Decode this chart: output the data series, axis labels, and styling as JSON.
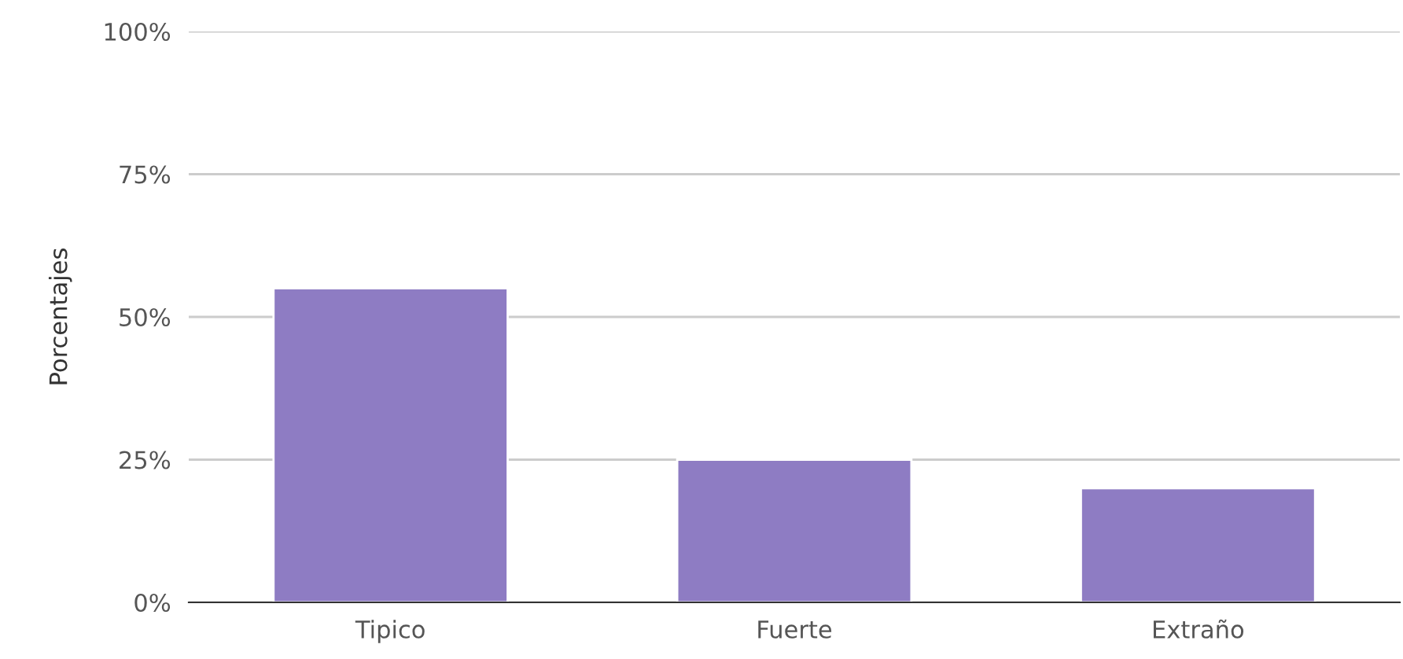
{
  "chart_data": {
    "type": "bar",
    "ylabel": "Porcentajes",
    "categories": [
      "Tipico",
      "Fuerte",
      "Extraño"
    ],
    "values": [
      55,
      25,
      20
    ],
    "color": "#8e7cc3",
    "ylim": [
      0,
      100
    ],
    "yticks": [
      {
        "value": 0,
        "label": "0%"
      },
      {
        "value": 25,
        "label": "25%"
      },
      {
        "value": 50,
        "label": "50%"
      },
      {
        "value": 75,
        "label": "75%"
      },
      {
        "value": 100,
        "label": "100%"
      }
    ],
    "grid": "y"
  }
}
